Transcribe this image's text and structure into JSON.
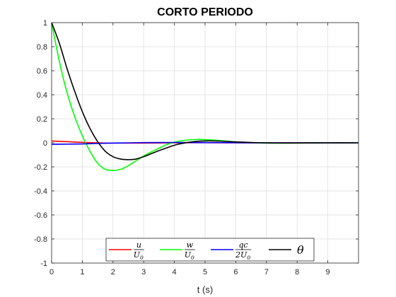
{
  "chart_data": {
    "type": "line",
    "title": "CORTO PERIODO",
    "xlabel": "t (s)",
    "ylabel": "",
    "xlim": [
      0,
      10
    ],
    "ylim": [
      -1,
      1
    ],
    "xticks": [
      0,
      1,
      2,
      3,
      4,
      5,
      6,
      7,
      8,
      9
    ],
    "yticks": [
      -1,
      -0.8,
      -0.6,
      -0.4,
      -0.2,
      0,
      0.2,
      0.4,
      0.6,
      0.8,
      1
    ],
    "xtick_labels": [
      "0",
      "1",
      "2",
      "3",
      "4",
      "5",
      "6",
      "7",
      "8",
      "9"
    ],
    "ytick_labels": [
      "-1",
      "-0.8",
      "-0.6",
      "-0.4",
      "-0.2",
      "0",
      "0.2",
      "0.4",
      "0.6",
      "0.8",
      "1"
    ],
    "grid": true,
    "legend_position": "bottom",
    "series": [
      {
        "name": "u/U0",
        "color": "#ff0000",
        "x": [
          0,
          0.5,
          1,
          1.5,
          2,
          3,
          4,
          5,
          6,
          7,
          8,
          9,
          10
        ],
        "y": [
          0.015,
          0.01,
          0.004,
          0.0,
          -0.002,
          -0.002,
          0.0,
          0.001,
          0.0,
          0.0,
          0.0,
          0.0,
          0.0
        ]
      },
      {
        "name": "w/U0",
        "color": "#00ff00",
        "x": [
          0,
          0.25,
          0.5,
          0.75,
          1,
          1.25,
          1.5,
          1.75,
          2,
          2.25,
          2.5,
          2.75,
          3,
          3.25,
          3.5,
          3.75,
          4,
          4.25,
          4.5,
          4.75,
          5,
          5.25,
          5.5,
          5.75,
          6,
          6.5,
          7,
          7.5,
          8,
          9,
          10
        ],
        "y": [
          1.0,
          0.68,
          0.42,
          0.22,
          0.06,
          -0.07,
          -0.17,
          -0.22,
          -0.23,
          -0.22,
          -0.19,
          -0.15,
          -0.11,
          -0.075,
          -0.045,
          -0.015,
          0.005,
          0.018,
          0.025,
          0.028,
          0.027,
          0.024,
          0.019,
          0.013,
          0.008,
          0.002,
          -0.002,
          -0.003,
          -0.002,
          0.0,
          0.0
        ]
      },
      {
        "name": "qc/2U0",
        "color": "#0000ff",
        "x": [
          0,
          0.5,
          1,
          1.5,
          2,
          2.5,
          3,
          4,
          5,
          6,
          7,
          8,
          9,
          10
        ],
        "y": [
          -0.012,
          -0.011,
          -0.009,
          -0.005,
          -0.002,
          0.0,
          0.002,
          0.003,
          0.002,
          0.001,
          0.0,
          0.0,
          0.0,
          0.0
        ]
      },
      {
        "name": "θ",
        "color": "#000000",
        "x": [
          0,
          0.25,
          0.5,
          0.75,
          1,
          1.25,
          1.5,
          1.75,
          2,
          2.25,
          2.5,
          2.75,
          3,
          3.25,
          3.5,
          3.75,
          4,
          4.25,
          4.5,
          4.75,
          5,
          5.25,
          5.5,
          5.75,
          6,
          6.5,
          7,
          7.5,
          8,
          9,
          10
        ],
        "y": [
          1.0,
          0.83,
          0.62,
          0.43,
          0.26,
          0.12,
          0.01,
          -0.07,
          -0.115,
          -0.135,
          -0.14,
          -0.135,
          -0.115,
          -0.09,
          -0.065,
          -0.042,
          -0.02,
          -0.005,
          0.006,
          0.013,
          0.016,
          0.016,
          0.014,
          0.011,
          0.008,
          0.003,
          0.0,
          -0.001,
          -0.001,
          0.0,
          0.0
        ]
      }
    ],
    "legend": {
      "entries": [
        {
          "num": "u",
          "den": "U",
          "den_sub": "0"
        },
        {
          "num": "w",
          "den": "U",
          "den_sub": "0"
        },
        {
          "num": "qc",
          "den": "2U",
          "den_sub": "0"
        },
        {
          "text": "θ"
        }
      ]
    }
  }
}
